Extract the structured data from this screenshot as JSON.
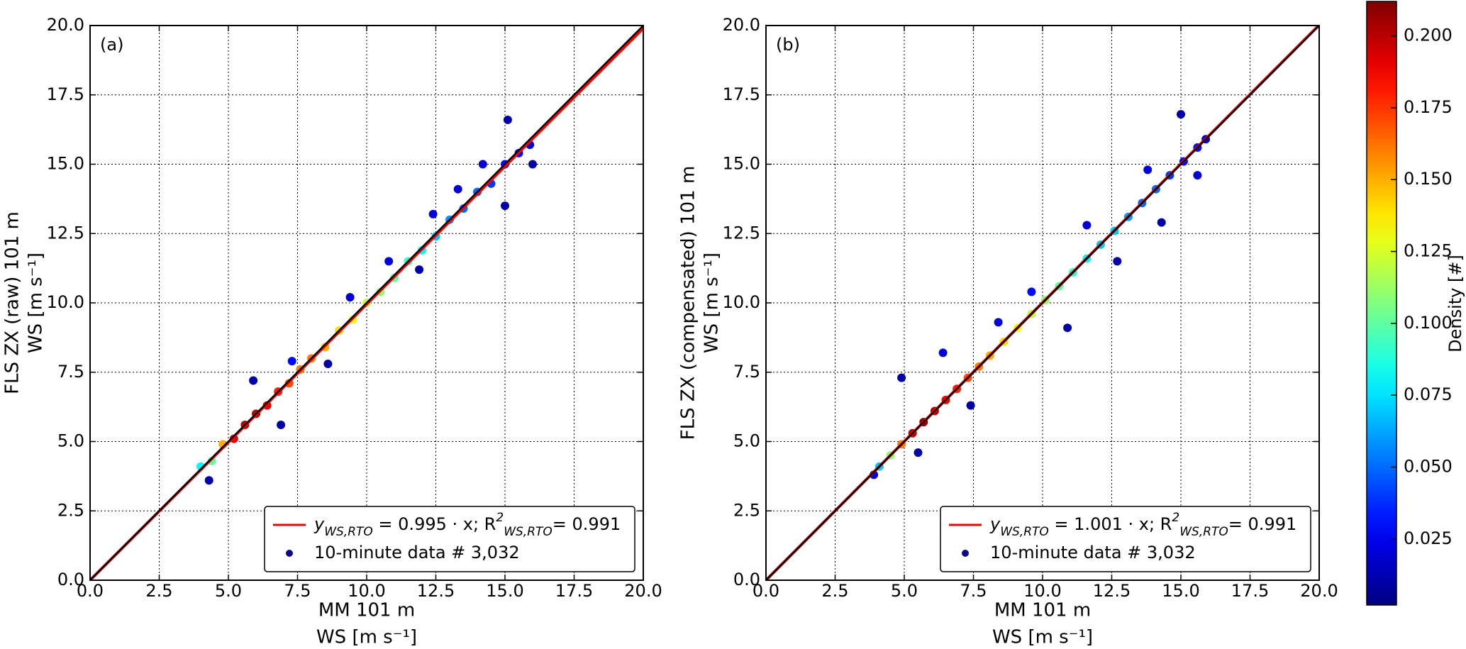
{
  "chart_data": [
    {
      "type": "scatter",
      "panel_label": "(a)",
      "xlabel": [
        "MM 101 m",
        "WS [m s⁻¹]"
      ],
      "ylabel": [
        "FLS ZX (raw) 101 m",
        "WS [m s⁻¹]"
      ],
      "xlim": [
        0,
        20
      ],
      "ylim": [
        0,
        20
      ],
      "xticks": [
        {
          "value": 0,
          "label": "0.0"
        },
        2.5,
        {
          "value": 5,
          "label": "5.0"
        },
        7.5,
        {
          "value": 10,
          "label": "10.0"
        },
        12.5,
        {
          "value": 15,
          "label": "15.0"
        },
        17.5,
        {
          "value": 20,
          "label": "20.0"
        }
      ],
      "yticks": [
        {
          "value": 0,
          "label": "0.0"
        },
        2.5,
        {
          "value": 5,
          "label": "5.0"
        },
        7.5,
        {
          "value": 10,
          "label": "10.0"
        },
        12.5,
        {
          "value": 15,
          "label": "15.0"
        },
        17.5,
        {
          "value": 20,
          "label": "20.0"
        }
      ],
      "grid": true,
      "fit": {
        "label": [
          "y",
          "WS,RTO",
          " = 0.995 · x; R",
          "2",
          "WS,RTO",
          "= 0.991"
        ],
        "slope": 0.995,
        "color": "#ff0000"
      },
      "series": [
        {
          "name": "10-minute data # 3,032",
          "marker_color": "#0a0a8c",
          "x": [
            5.9,
            6.9,
            8.6,
            9.4,
            11.9,
            13.3,
            15.1,
            15.0,
            14.2,
            12.4,
            10.8,
            7.3,
            4.3,
            16.0,
            4.0,
            4.4,
            4.8,
            5.2,
            5.6,
            6.0,
            6.4,
            6.8,
            7.2,
            7.6,
            8.0,
            8.5,
            9.0,
            9.5,
            10.0,
            10.5,
            11.0,
            11.5,
            12.0,
            12.5,
            13.0,
            13.5,
            14.0,
            14.5,
            15.0,
            15.5,
            15.9
          ],
          "y": [
            7.2,
            5.6,
            7.8,
            10.2,
            11.2,
            14.1,
            16.6,
            13.5,
            15.0,
            13.2,
            11.5,
            7.9,
            3.6,
            15.0,
            4.1,
            4.3,
            4.9,
            5.1,
            5.6,
            6.0,
            6.3,
            6.8,
            7.1,
            7.6,
            8.0,
            8.4,
            9.0,
            9.4,
            10.0,
            10.4,
            10.9,
            11.5,
            11.9,
            12.4,
            13.0,
            13.4,
            14.0,
            14.3,
            15.0,
            15.4,
            15.7
          ],
          "density": [
            0.01,
            0.01,
            0.01,
            0.02,
            0.01,
            0.02,
            0.01,
            0.01,
            0.02,
            0.02,
            0.02,
            0.03,
            0.01,
            0.01,
            0.08,
            0.1,
            0.15,
            0.19,
            0.2,
            0.2,
            0.19,
            0.18,
            0.17,
            0.16,
            0.16,
            0.15,
            0.14,
            0.13,
            0.12,
            0.11,
            0.1,
            0.09,
            0.08,
            0.07,
            0.06,
            0.05,
            0.05,
            0.04,
            0.03,
            0.03,
            0.02
          ]
        }
      ]
    },
    {
      "type": "scatter",
      "panel_label": "(b)",
      "xlabel": [
        "MM 101 m",
        "WS [m s⁻¹]"
      ],
      "ylabel": [
        "FLS ZX (compensated) 101 m",
        "WS [m s⁻¹]"
      ],
      "xlim": [
        0,
        20
      ],
      "ylim": [
        0,
        20
      ],
      "xticks": [
        {
          "value": 0,
          "label": "0.0"
        },
        2.5,
        {
          "value": 5,
          "label": "5.0"
        },
        7.5,
        {
          "value": 10,
          "label": "10.0"
        },
        12.5,
        {
          "value": 15,
          "label": "15.0"
        },
        17.5,
        {
          "value": 20,
          "label": "20.0"
        }
      ],
      "yticks": [
        {
          "value": 0,
          "label": "0.0"
        },
        2.5,
        {
          "value": 5,
          "label": "5.0"
        },
        7.5,
        {
          "value": 10,
          "label": "10.0"
        },
        12.5,
        {
          "value": 15,
          "label": "15.0"
        },
        17.5,
        {
          "value": 20,
          "label": "20.0"
        }
      ],
      "grid": true,
      "fit": {
        "label": [
          "y",
          "WS,RTO",
          " = 1.001 · x; R",
          "2",
          "WS,RTO",
          "= 0.991"
        ],
        "slope": 1.001,
        "color": "#ff0000"
      },
      "series": [
        {
          "name": "10-minute data # 3,032",
          "marker_color": "#0a0a8c",
          "x": [
            4.9,
            5.5,
            6.4,
            7.4,
            8.4,
            10.9,
            11.6,
            12.7,
            14.3,
            15.0,
            15.6,
            13.8,
            9.6,
            3.9,
            4.1,
            4.5,
            4.9,
            5.3,
            5.7,
            6.1,
            6.5,
            6.9,
            7.3,
            7.7,
            8.1,
            8.6,
            9.1,
            9.6,
            10.1,
            10.6,
            11.1,
            11.6,
            12.1,
            12.6,
            13.1,
            13.6,
            14.1,
            14.6,
            15.1,
            15.6,
            15.9
          ],
          "y": [
            7.3,
            4.6,
            8.2,
            6.3,
            9.3,
            9.1,
            12.8,
            11.5,
            12.9,
            16.8,
            14.6,
            14.8,
            10.4,
            3.8,
            4.1,
            4.5,
            4.9,
            5.3,
            5.7,
            6.1,
            6.5,
            6.9,
            7.3,
            7.7,
            8.1,
            8.6,
            9.1,
            9.6,
            10.1,
            10.6,
            11.1,
            11.6,
            12.1,
            12.6,
            13.1,
            13.6,
            14.1,
            14.6,
            15.1,
            15.6,
            15.9
          ],
          "density": [
            0.01,
            0.01,
            0.02,
            0.01,
            0.02,
            0.01,
            0.02,
            0.01,
            0.01,
            0.01,
            0.02,
            0.02,
            0.03,
            0.02,
            0.07,
            0.11,
            0.16,
            0.2,
            0.21,
            0.2,
            0.19,
            0.18,
            0.17,
            0.16,
            0.15,
            0.14,
            0.13,
            0.12,
            0.11,
            0.1,
            0.09,
            0.08,
            0.07,
            0.07,
            0.06,
            0.05,
            0.05,
            0.04,
            0.03,
            0.03,
            0.02
          ]
        }
      ]
    }
  ],
  "colorbar": {
    "label": "Density [#]",
    "colormap": "jet",
    "lim": [
      0.002,
      0.212
    ],
    "ticks": [
      0.025,
      {
        "value": 0.05,
        "label": "0.050"
      },
      0.075,
      {
        "value": 0.1,
        "label": "0.100"
      },
      0.125,
      {
        "value": 0.15,
        "label": "0.150"
      },
      0.175,
      {
        "value": 0.2,
        "label": "0.200"
      }
    ]
  }
}
